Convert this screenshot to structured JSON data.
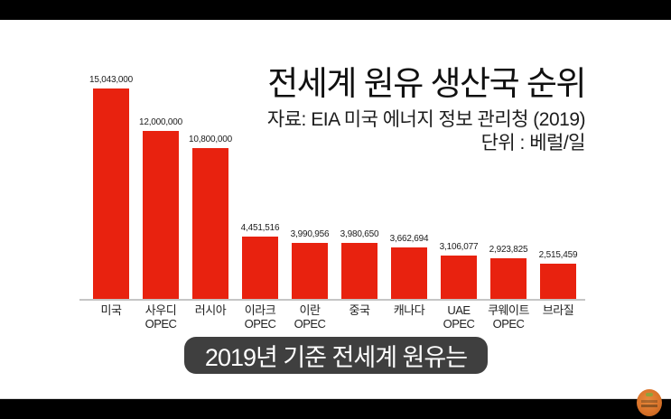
{
  "header": {
    "title": "전세계 원유 생산국 순위",
    "source": "자료: EIA 미국 에너지 정보 관리청 (2019)",
    "unit": "단위 : 베럴/일"
  },
  "caption": {
    "text": "2019년 기준 전세계 원유는"
  },
  "colors": {
    "bar": "#e8220f",
    "axis": "#c5c5c5",
    "caption_bg": "#3f3f3f",
    "logo_orange": "#d9732a"
  },
  "chart_data": {
    "type": "bar",
    "title": "전세계 원유 생산국 순위",
    "subtitle": "자료: EIA 미국 에너지 정보 관리청 (2019)",
    "unit_label": "단위 : 베럴/일",
    "xlabel": "",
    "ylabel": "",
    "ylim": [
      0,
      15043000
    ],
    "grid": false,
    "legend": false,
    "categories": [
      "미국",
      "사우디\nOPEC",
      "러시아",
      "이라크\nOPEC",
      "이란\nOPEC",
      "중국",
      "캐나다",
      "UAE\nOPEC",
      "쿠웨이트\nOPEC",
      "브라질"
    ],
    "values": [
      15043000,
      12000000,
      10800000,
      4451516,
      3990956,
      3980650,
      3662694,
      3106077,
      2923825,
      2515459
    ],
    "value_labels": [
      "15,043,000",
      "12,000,000",
      "10,800,000",
      "4,451,516",
      "3,990,956",
      "3,980,650",
      "3,662,694",
      "3,106,077",
      "2,923,825",
      "2,515,459"
    ]
  }
}
